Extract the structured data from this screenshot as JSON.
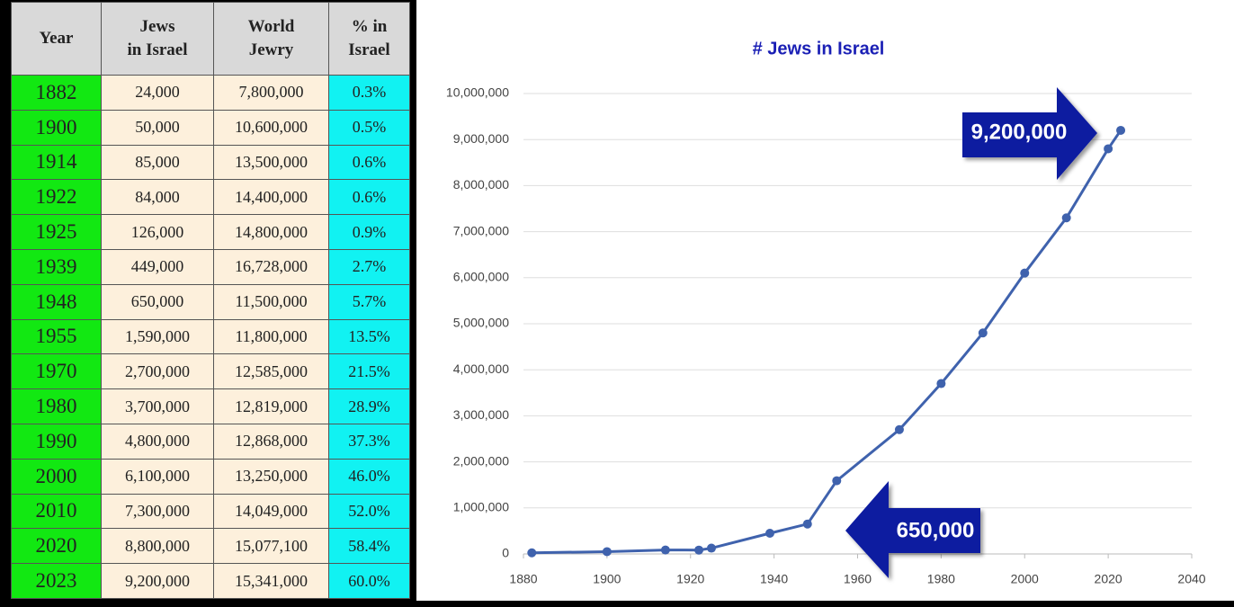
{
  "table": {
    "header": [
      [
        "Year"
      ],
      [
        "Jews",
        "in Israel"
      ],
      [
        "World",
        "Jewry"
      ],
      [
        "% in",
        "Israel"
      ]
    ],
    "rows": [
      [
        "1882",
        "24,000",
        "7,800,000",
        "0.3%"
      ],
      [
        "1900",
        "50,000",
        "10,600,000",
        "0.5%"
      ],
      [
        "1914",
        "85,000",
        "13,500,000",
        "0.6%"
      ],
      [
        "1922",
        "84,000",
        "14,400,000",
        "0.6%"
      ],
      [
        "1925",
        "126,000",
        "14,800,000",
        "0.9%"
      ],
      [
        "1939",
        "449,000",
        "16,728,000",
        "2.7%"
      ],
      [
        "1948",
        "650,000",
        "11,500,000",
        "5.7%"
      ],
      [
        "1955",
        "1,590,000",
        "11,800,000",
        "13.5%"
      ],
      [
        "1970",
        "2,700,000",
        "12,585,000",
        "21.5%"
      ],
      [
        "1980",
        "3,700,000",
        "12,819,000",
        "28.9%"
      ],
      [
        "1990",
        "4,800,000",
        "12,868,000",
        "37.3%"
      ],
      [
        "2000",
        "6,100,000",
        "13,250,000",
        "46.0%"
      ],
      [
        "2010",
        "7,300,000",
        "14,049,000",
        "52.0%"
      ],
      [
        "2020",
        "8,800,000",
        "15,077,100",
        "58.4%"
      ],
      [
        "2023",
        "9,200,000",
        "15,341,000",
        "60.0%"
      ]
    ]
  },
  "chart_data": {
    "type": "line",
    "title": "# Jews in Israel",
    "x": [
      1882,
      1900,
      1914,
      1922,
      1925,
      1939,
      1948,
      1955,
      1970,
      1980,
      1990,
      2000,
      2010,
      2020,
      2023
    ],
    "series": [
      {
        "color": "#3f62ad",
        "values": [
          24000,
          50000,
          85000,
          84000,
          126000,
          449000,
          650000,
          1590000,
          2700000,
          3700000,
          4800000,
          6100000,
          7300000,
          8800000,
          9200000
        ]
      }
    ],
    "xlim": [
      1880,
      2040
    ],
    "xticks": [
      1880,
      1900,
      1920,
      1940,
      1960,
      1980,
      2000,
      2020,
      2040
    ],
    "ylim": [
      0,
      10000000
    ],
    "yticks": [
      0,
      {
        "value": 1000000,
        "label": "1,000,000"
      },
      {
        "value": 2000000,
        "label": "2,000,000"
      },
      {
        "value": 3000000,
        "label": "3,000,000"
      },
      {
        "value": 4000000,
        "label": "4,000,000"
      },
      {
        "value": 5000000,
        "label": "5,000,000"
      },
      {
        "value": 6000000,
        "label": "6,000,000"
      },
      {
        "value": 7000000,
        "label": "7,000,000"
      },
      {
        "value": 8000000,
        "label": "8,000,000"
      },
      {
        "value": 9000000,
        "label": "9,000,000"
      },
      {
        "value": 10000000,
        "label": "10,000,000"
      }
    ],
    "grid": true,
    "annotations": [
      "9,200,000",
      "650,000"
    ]
  }
}
